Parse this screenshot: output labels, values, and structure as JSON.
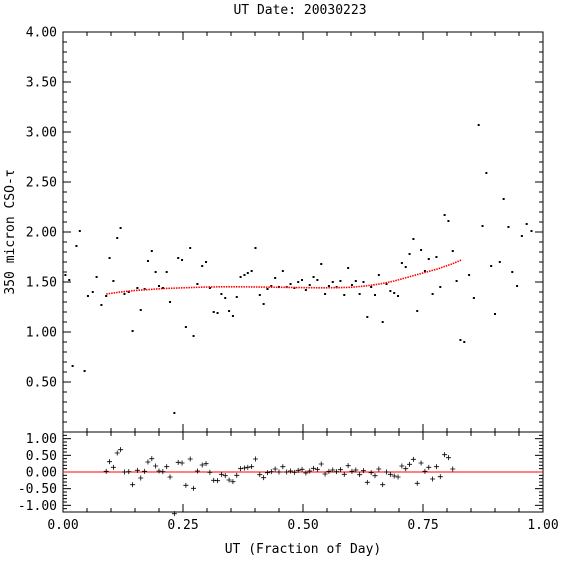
{
  "chart_data": [
    {
      "type": "scatter",
      "title": "UT Date: 20030223",
      "xlabel": "",
      "ylabel": "350 micron CSO-τ",
      "xlim": [
        0,
        1
      ],
      "ylim": [
        0,
        4
      ],
      "grid": false,
      "x_ticks": [
        "0.00",
        "0.25",
        "0.50",
        "0.75",
        "1.00"
      ],
      "y_ticks": [
        "0.50",
        "1.00",
        "1.50",
        "2.00",
        "2.50",
        "3.00",
        "3.50",
        "4.00"
      ],
      "series": [
        {
          "marker": "dot",
          "color": "#000000",
          "points": [
            [
              0.005,
              1.57
            ],
            [
              0.013,
              1.52
            ],
            [
              0.02,
              0.66
            ],
            [
              0.028,
              1.86
            ],
            [
              0.035,
              2.01
            ],
            [
              0.045,
              0.61
            ],
            [
              0.052,
              1.36
            ],
            [
              0.062,
              1.4
            ],
            [
              0.07,
              1.55
            ],
            [
              0.08,
              1.27
            ],
            [
              0.09,
              1.36
            ],
            [
              0.097,
              1.74
            ],
            [
              0.105,
              1.51
            ],
            [
              0.113,
              1.94
            ],
            [
              0.12,
              2.04
            ],
            [
              0.128,
              1.38
            ],
            [
              0.137,
              1.4
            ],
            [
              0.145,
              1.01
            ],
            [
              0.155,
              1.44
            ],
            [
              0.162,
              1.22
            ],
            [
              0.17,
              1.43
            ],
            [
              0.177,
              1.71
            ],
            [
              0.185,
              1.81
            ],
            [
              0.193,
              1.6
            ],
            [
              0.2,
              1.46
            ],
            [
              0.208,
              1.44
            ],
            [
              0.216,
              1.6
            ],
            [
              0.223,
              1.3
            ],
            [
              0.232,
              0.19
            ],
            [
              0.24,
              1.74
            ],
            [
              0.248,
              1.72
            ],
            [
              0.256,
              1.05
            ],
            [
              0.265,
              1.84
            ],
            [
              0.272,
              0.96
            ],
            [
              0.28,
              1.48
            ],
            [
              0.29,
              1.66
            ],
            [
              0.298,
              1.7
            ],
            [
              0.306,
              1.44
            ],
            [
              0.314,
              1.2
            ],
            [
              0.322,
              1.19
            ],
            [
              0.33,
              1.38
            ],
            [
              0.338,
              1.34
            ],
            [
              0.346,
              1.21
            ],
            [
              0.354,
              1.16
            ],
            [
              0.362,
              1.35
            ],
            [
              0.37,
              1.55
            ],
            [
              0.378,
              1.57
            ],
            [
              0.385,
              1.59
            ],
            [
              0.393,
              1.61
            ],
            [
              0.401,
              1.84
            ],
            [
              0.41,
              1.37
            ],
            [
              0.418,
              1.28
            ],
            [
              0.426,
              1.43
            ],
            [
              0.434,
              1.46
            ],
            [
              0.442,
              1.54
            ],
            [
              0.45,
              1.45
            ],
            [
              0.458,
              1.61
            ],
            [
              0.466,
              1.45
            ],
            [
              0.474,
              1.48
            ],
            [
              0.482,
              1.44
            ],
            [
              0.49,
              1.5
            ],
            [
              0.498,
              1.52
            ],
            [
              0.506,
              1.42
            ],
            [
              0.514,
              1.47
            ],
            [
              0.522,
              1.55
            ],
            [
              0.53,
              1.52
            ],
            [
              0.538,
              1.68
            ],
            [
              0.546,
              1.38
            ],
            [
              0.554,
              1.46
            ],
            [
              0.562,
              1.5
            ],
            [
              0.57,
              1.45
            ],
            [
              0.578,
              1.51
            ],
            [
              0.586,
              1.37
            ],
            [
              0.594,
              1.64
            ],
            [
              0.602,
              1.47
            ],
            [
              0.61,
              1.51
            ],
            [
              0.618,
              1.38
            ],
            [
              0.626,
              1.5
            ],
            [
              0.634,
              1.15
            ],
            [
              0.642,
              1.45
            ],
            [
              0.65,
              1.37
            ],
            [
              0.658,
              1.57
            ],
            [
              0.666,
              1.1
            ],
            [
              0.674,
              1.48
            ],
            [
              0.682,
              1.41
            ],
            [
              0.69,
              1.39
            ],
            [
              0.698,
              1.36
            ],
            [
              0.706,
              1.69
            ],
            [
              0.714,
              1.65
            ],
            [
              0.722,
              1.78
            ],
            [
              0.73,
              1.93
            ],
            [
              0.738,
              1.21
            ],
            [
              0.746,
              1.82
            ],
            [
              0.754,
              1.61
            ],
            [
              0.762,
              1.73
            ],
            [
              0.77,
              1.38
            ],
            [
              0.778,
              1.75
            ],
            [
              0.786,
              1.45
            ],
            [
              0.795,
              2.17
            ],
            [
              0.803,
              2.11
            ],
            [
              0.812,
              1.81
            ],
            [
              0.82,
              1.51
            ],
            [
              0.828,
              0.92
            ],
            [
              0.836,
              0.9
            ],
            [
              0.846,
              1.57
            ],
            [
              0.856,
              1.34
            ],
            [
              0.866,
              3.07
            ],
            [
              0.874,
              2.06
            ],
            [
              0.882,
              2.59
            ],
            [
              0.892,
              1.66
            ],
            [
              0.9,
              1.18
            ],
            [
              0.91,
              1.7
            ],
            [
              0.918,
              2.33
            ],
            [
              0.928,
              2.05
            ],
            [
              0.936,
              1.6
            ],
            [
              0.946,
              1.46
            ],
            [
              0.956,
              1.96
            ],
            [
              0.966,
              2.08
            ],
            [
              0.976,
              2.01
            ]
          ]
        },
        {
          "type": "line",
          "color": "#ff0000",
          "x": [
            0.09,
            0.12,
            0.15,
            0.18,
            0.21,
            0.24,
            0.27,
            0.3,
            0.33,
            0.36,
            0.39,
            0.42,
            0.45,
            0.48,
            0.51,
            0.54,
            0.57,
            0.6,
            0.63,
            0.66,
            0.69,
            0.72,
            0.75,
            0.78,
            0.81,
            0.83
          ],
          "y": [
            1.38,
            1.4,
            1.415,
            1.425,
            1.435,
            1.44,
            1.445,
            1.45,
            1.452,
            1.452,
            1.451,
            1.449,
            1.447,
            1.445,
            1.443,
            1.442,
            1.443,
            1.447,
            1.46,
            1.48,
            1.51,
            1.55,
            1.59,
            1.63,
            1.68,
            1.72
          ]
        }
      ]
    },
    {
      "type": "scatter",
      "xlabel": "UT (Fraction of Day)",
      "ylabel": "",
      "xlim": [
        0,
        1
      ],
      "ylim": [
        -1.2,
        1.2
      ],
      "grid": false,
      "x_ticks": [
        "0.00",
        "0.25",
        "0.50",
        "0.75",
        "1.00"
      ],
      "y_ticks": [
        "-1.00",
        "-0.50",
        "0.00",
        "0.50",
        "1.00"
      ],
      "reference_line": 0,
      "series": [
        {
          "marker": "plus",
          "color": "#000000",
          "points": [
            [
              0.09,
              0.02
            ],
            [
              0.097,
              0.31
            ],
            [
              0.105,
              0.14
            ],
            [
              0.113,
              0.57
            ],
            [
              0.12,
              0.67
            ],
            [
              0.128,
              0.0
            ],
            [
              0.137,
              0.01
            ],
            [
              0.145,
              -0.38
            ],
            [
              0.155,
              0.05
            ],
            [
              0.162,
              -0.18
            ],
            [
              0.17,
              0.02
            ],
            [
              0.177,
              0.3
            ],
            [
              0.185,
              0.4
            ],
            [
              0.193,
              0.18
            ],
            [
              0.2,
              0.03
            ],
            [
              0.208,
              0.01
            ],
            [
              0.216,
              0.16
            ],
            [
              0.223,
              -0.15
            ],
            [
              0.232,
              -1.25
            ],
            [
              0.24,
              0.29
            ],
            [
              0.248,
              0.27
            ],
            [
              0.256,
              -0.4
            ],
            [
              0.265,
              0.39
            ],
            [
              0.272,
              -0.49
            ],
            [
              0.28,
              0.03
            ],
            [
              0.29,
              0.21
            ],
            [
              0.298,
              0.25
            ],
            [
              0.306,
              -0.01
            ],
            [
              0.314,
              -0.25
            ],
            [
              0.322,
              -0.26
            ],
            [
              0.33,
              -0.07
            ],
            [
              0.338,
              -0.11
            ],
            [
              0.346,
              -0.24
            ],
            [
              0.354,
              -0.29
            ],
            [
              0.362,
              -0.1
            ],
            [
              0.37,
              0.1
            ],
            [
              0.378,
              0.12
            ],
            [
              0.385,
              0.14
            ],
            [
              0.393,
              0.16
            ],
            [
              0.401,
              0.39
            ],
            [
              0.41,
              -0.08
            ],
            [
              0.418,
              -0.17
            ],
            [
              0.426,
              -0.02
            ],
            [
              0.434,
              0.01
            ],
            [
              0.442,
              0.09
            ],
            [
              0.45,
              0.0
            ],
            [
              0.458,
              0.16
            ],
            [
              0.466,
              0.0
            ],
            [
              0.474,
              0.03
            ],
            [
              0.482,
              -0.01
            ],
            [
              0.49,
              0.05
            ],
            [
              0.498,
              0.08
            ],
            [
              0.506,
              -0.03
            ],
            [
              0.514,
              0.03
            ],
            [
              0.522,
              0.11
            ],
            [
              0.53,
              0.08
            ],
            [
              0.538,
              0.24
            ],
            [
              0.546,
              -0.06
            ],
            [
              0.554,
              0.02
            ],
            [
              0.562,
              0.06
            ],
            [
              0.57,
              0.01
            ],
            [
              0.578,
              0.07
            ],
            [
              0.586,
              -0.07
            ],
            [
              0.594,
              0.19
            ],
            [
              0.602,
              0.02
            ],
            [
              0.61,
              0.06
            ],
            [
              0.618,
              -0.08
            ],
            [
              0.626,
              0.04
            ],
            [
              0.634,
              -0.31
            ],
            [
              0.642,
              -0.02
            ],
            [
              0.65,
              -0.11
            ],
            [
              0.658,
              0.09
            ],
            [
              0.666,
              -0.38
            ],
            [
              0.674,
              0.0
            ],
            [
              0.682,
              -0.07
            ],
            [
              0.69,
              -0.12
            ],
            [
              0.698,
              -0.15
            ],
            [
              0.706,
              0.18
            ],
            [
              0.714,
              0.1
            ],
            [
              0.722,
              0.23
            ],
            [
              0.73,
              0.38
            ],
            [
              0.738,
              -0.34
            ],
            [
              0.746,
              0.27
            ],
            [
              0.754,
              0.02
            ],
            [
              0.762,
              0.14
            ],
            [
              0.77,
              -0.21
            ],
            [
              0.778,
              0.16
            ],
            [
              0.786,
              -0.14
            ],
            [
              0.795,
              0.52
            ],
            [
              0.803,
              0.43
            ],
            [
              0.812,
              0.09
            ]
          ]
        }
      ]
    }
  ]
}
